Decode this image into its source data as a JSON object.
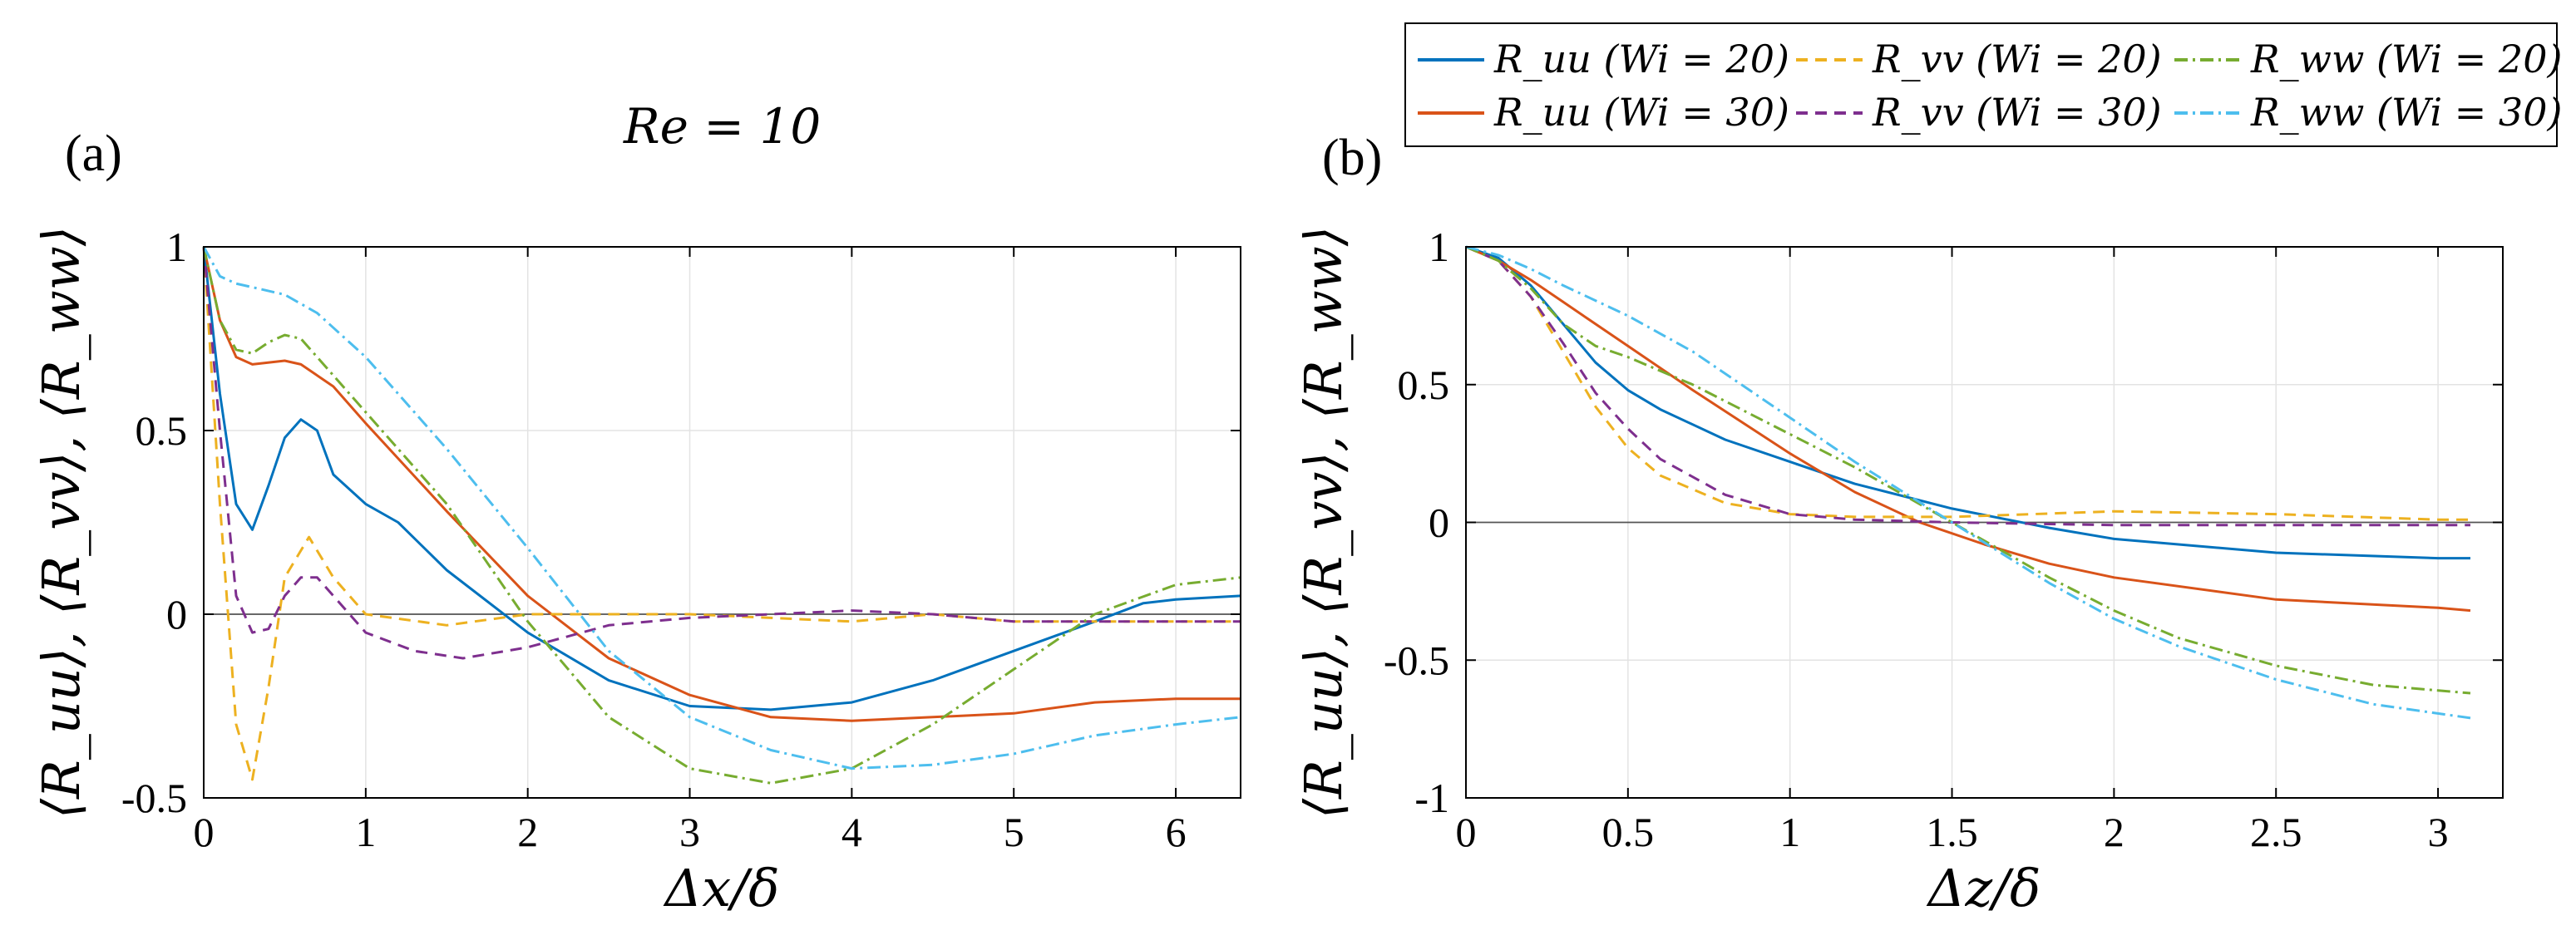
{
  "figure": {
    "header": "Re = 10",
    "legend": [
      {
        "key": "uu20",
        "label": "R_uu (Wi = 20)",
        "color": "#0072BD",
        "dash": "solid"
      },
      {
        "key": "vv20",
        "label": "R_vv (Wi = 20)",
        "color": "#EDB120",
        "dash": "dashed"
      },
      {
        "key": "ww20",
        "label": "R_ww (Wi = 20)",
        "color": "#77AC30",
        "dash": "dashdot"
      },
      {
        "key": "uu30",
        "label": "R_uu (Wi = 30)",
        "color": "#D95319",
        "dash": "solid"
      },
      {
        "key": "vv30",
        "label": "R_vv (Wi = 30)",
        "color": "#7E2F8E",
        "dash": "dashed"
      },
      {
        "key": "ww30",
        "label": "R_ww (Wi = 30)",
        "color": "#4DBEEE",
        "dash": "dashdot"
      }
    ]
  },
  "chart_data": [
    {
      "type": "line",
      "panel": "(a)",
      "xlabel": "Δx/δ",
      "ylabel": "⟨R_uu⟩, ⟨R_vv⟩, ⟨R_ww⟩",
      "xlim": [
        0,
        6.4
      ],
      "ylim": [
        -0.5,
        1
      ],
      "xticks": [
        0,
        1,
        2,
        3,
        4,
        5,
        6
      ],
      "yticks": [
        -0.5,
        0,
        0.5,
        1
      ],
      "ytick_labels": [
        "-0.5",
        "0",
        "0.5",
        "1"
      ],
      "grid": true,
      "series": [
        {
          "key": "uu20",
          "name": "R_uu (Wi = 20)",
          "x": [
            0,
            0.1,
            0.2,
            0.3,
            0.4,
            0.5,
            0.6,
            0.7,
            0.8,
            1.0,
            1.2,
            1.5,
            2.0,
            2.5,
            3.0,
            3.5,
            4.0,
            4.5,
            5.0,
            5.5,
            5.8,
            6.0,
            6.4
          ],
          "y": [
            1,
            0.6,
            0.3,
            0.23,
            0.35,
            0.48,
            0.53,
            0.5,
            0.38,
            0.3,
            0.25,
            0.12,
            -0.05,
            -0.18,
            -0.25,
            -0.26,
            -0.24,
            -0.18,
            -0.1,
            -0.02,
            0.03,
            0.04,
            0.05
          ]
        },
        {
          "key": "uu30",
          "name": "R_uu (Wi = 30)",
          "x": [
            0,
            0.1,
            0.2,
            0.3,
            0.5,
            0.6,
            0.8,
            1.0,
            1.5,
            2.0,
            2.5,
            3.0,
            3.5,
            4.0,
            4.5,
            5.0,
            5.5,
            6.0,
            6.4
          ],
          "y": [
            1,
            0.8,
            0.7,
            0.68,
            0.69,
            0.68,
            0.62,
            0.52,
            0.28,
            0.05,
            -0.12,
            -0.22,
            -0.28,
            -0.29,
            -0.28,
            -0.27,
            -0.24,
            -0.23,
            -0.23
          ]
        },
        {
          "key": "vv20",
          "name": "R_vv (Wi = 20)",
          "x": [
            0,
            0.1,
            0.2,
            0.3,
            0.4,
            0.5,
            0.65,
            0.8,
            1.0,
            1.5,
            2.0,
            2.5,
            3.0,
            3.5,
            4.0,
            4.5,
            5.0,
            5.5,
            6.0,
            6.4
          ],
          "y": [
            1,
            0.3,
            -0.3,
            -0.45,
            -0.2,
            0.1,
            0.21,
            0.1,
            0,
            -0.03,
            0,
            0,
            0,
            -0.01,
            -0.02,
            0,
            -0.02,
            -0.02,
            -0.02,
            -0.02
          ]
        },
        {
          "key": "vv30",
          "name": "R_vv (Wi = 30)",
          "x": [
            0,
            0.1,
            0.2,
            0.3,
            0.4,
            0.5,
            0.6,
            0.7,
            0.8,
            1.0,
            1.3,
            1.6,
            2.0,
            2.5,
            3.0,
            3.5,
            4.0,
            4.5,
            5.0,
            5.5,
            6.0,
            6.4
          ],
          "y": [
            1,
            0.5,
            0.05,
            -0.05,
            -0.04,
            0.05,
            0.1,
            0.1,
            0.05,
            -0.05,
            -0.1,
            -0.12,
            -0.09,
            -0.03,
            -0.01,
            0,
            0.01,
            0,
            -0.02,
            -0.02,
            -0.02,
            -0.02
          ]
        },
        {
          "key": "ww20",
          "name": "R_ww (Wi = 20)",
          "x": [
            0,
            0.1,
            0.2,
            0.3,
            0.4,
            0.5,
            0.6,
            0.8,
            1.0,
            1.5,
            2.0,
            2.5,
            3.0,
            3.5,
            4.0,
            4.5,
            5.0,
            5.5,
            6.0,
            6.4
          ],
          "y": [
            1,
            0.8,
            0.72,
            0.71,
            0.74,
            0.76,
            0.75,
            0.65,
            0.55,
            0.3,
            -0.02,
            -0.28,
            -0.42,
            -0.46,
            -0.42,
            -0.3,
            -0.15,
            0,
            0.08,
            0.1
          ]
        },
        {
          "key": "ww30",
          "name": "R_ww (Wi = 30)",
          "x": [
            0,
            0.1,
            0.2,
            0.3,
            0.5,
            0.7,
            1.0,
            1.5,
            2.0,
            2.5,
            3.0,
            3.5,
            4.0,
            4.5,
            5.0,
            5.5,
            6.0,
            6.4
          ],
          "y": [
            1,
            0.92,
            0.9,
            0.89,
            0.87,
            0.82,
            0.7,
            0.45,
            0.18,
            -0.1,
            -0.28,
            -0.37,
            -0.42,
            -0.41,
            -0.38,
            -0.33,
            -0.3,
            -0.28
          ]
        }
      ]
    },
    {
      "type": "line",
      "panel": "(b)",
      "xlabel": "Δz/δ",
      "ylabel": "⟨R_uu⟩, ⟨R_vv⟩, ⟨R_ww⟩",
      "xlim": [
        0,
        3.2
      ],
      "ylim": [
        -1,
        1
      ],
      "xticks": [
        0,
        0.5,
        1,
        1.5,
        2,
        2.5,
        3
      ],
      "yticks": [
        -1,
        -0.5,
        0,
        0.5,
        1
      ],
      "ytick_labels": [
        "-1",
        "-0.5",
        "0",
        "0.5",
        "1"
      ],
      "grid": true,
      "series": [
        {
          "key": "uu20",
          "name": "R_uu (Wi = 20)",
          "x": [
            0,
            0.1,
            0.2,
            0.3,
            0.4,
            0.5,
            0.6,
            0.8,
            1.0,
            1.2,
            1.5,
            1.8,
            2.0,
            2.5,
            3.0,
            3.1
          ],
          "y": [
            1,
            0.96,
            0.86,
            0.72,
            0.58,
            0.48,
            0.41,
            0.3,
            0.22,
            0.14,
            0.05,
            -0.02,
            -0.06,
            -0.11,
            -0.13,
            -0.13
          ]
        },
        {
          "key": "uu30",
          "name": "R_uu (Wi = 30)",
          "x": [
            0,
            0.1,
            0.2,
            0.3,
            0.5,
            0.7,
            1.0,
            1.2,
            1.4,
            1.6,
            1.8,
            2.0,
            2.5,
            3.0,
            3.1
          ],
          "y": [
            1,
            0.95,
            0.88,
            0.8,
            0.64,
            0.48,
            0.25,
            0.11,
            0.0,
            -0.08,
            -0.15,
            -0.2,
            -0.28,
            -0.31,
            -0.32
          ]
        },
        {
          "key": "vv20",
          "name": "R_vv (Wi = 20)",
          "x": [
            0,
            0.1,
            0.2,
            0.3,
            0.4,
            0.5,
            0.6,
            0.8,
            1.0,
            1.2,
            1.5,
            2.0,
            2.5,
            3.0,
            3.1
          ],
          "y": [
            1,
            0.95,
            0.82,
            0.62,
            0.42,
            0.27,
            0.17,
            0.07,
            0.03,
            0.02,
            0.02,
            0.04,
            0.03,
            0.01,
            0.01
          ]
        },
        {
          "key": "vv30",
          "name": "R_vv (Wi = 30)",
          "x": [
            0,
            0.1,
            0.2,
            0.3,
            0.4,
            0.5,
            0.6,
            0.8,
            1.0,
            1.2,
            1.5,
            2.0,
            2.5,
            3.0,
            3.1
          ],
          "y": [
            1,
            0.95,
            0.82,
            0.65,
            0.47,
            0.34,
            0.23,
            0.1,
            0.03,
            0.01,
            0,
            -0.01,
            -0.01,
            -0.01,
            -0.01
          ]
        },
        {
          "key": "ww20",
          "name": "R_ww (Wi = 20)",
          "x": [
            0,
            0.1,
            0.2,
            0.3,
            0.4,
            0.5,
            0.7,
            1.0,
            1.2,
            1.5,
            1.8,
            2.0,
            2.2,
            2.5,
            2.8,
            3.1
          ],
          "y": [
            1,
            0.95,
            0.85,
            0.72,
            0.64,
            0.6,
            0.5,
            0.32,
            0.2,
            0.0,
            -0.2,
            -0.32,
            -0.42,
            -0.52,
            -0.59,
            -0.62
          ]
        },
        {
          "key": "ww30",
          "name": "R_ww (Wi = 30)",
          "x": [
            0,
            0.1,
            0.2,
            0.3,
            0.5,
            0.7,
            1.0,
            1.2,
            1.5,
            1.8,
            2.0,
            2.2,
            2.5,
            2.8,
            3.1
          ],
          "y": [
            1,
            0.97,
            0.92,
            0.86,
            0.75,
            0.62,
            0.38,
            0.22,
            0.0,
            -0.22,
            -0.35,
            -0.45,
            -0.57,
            -0.66,
            -0.71
          ]
        }
      ]
    }
  ]
}
